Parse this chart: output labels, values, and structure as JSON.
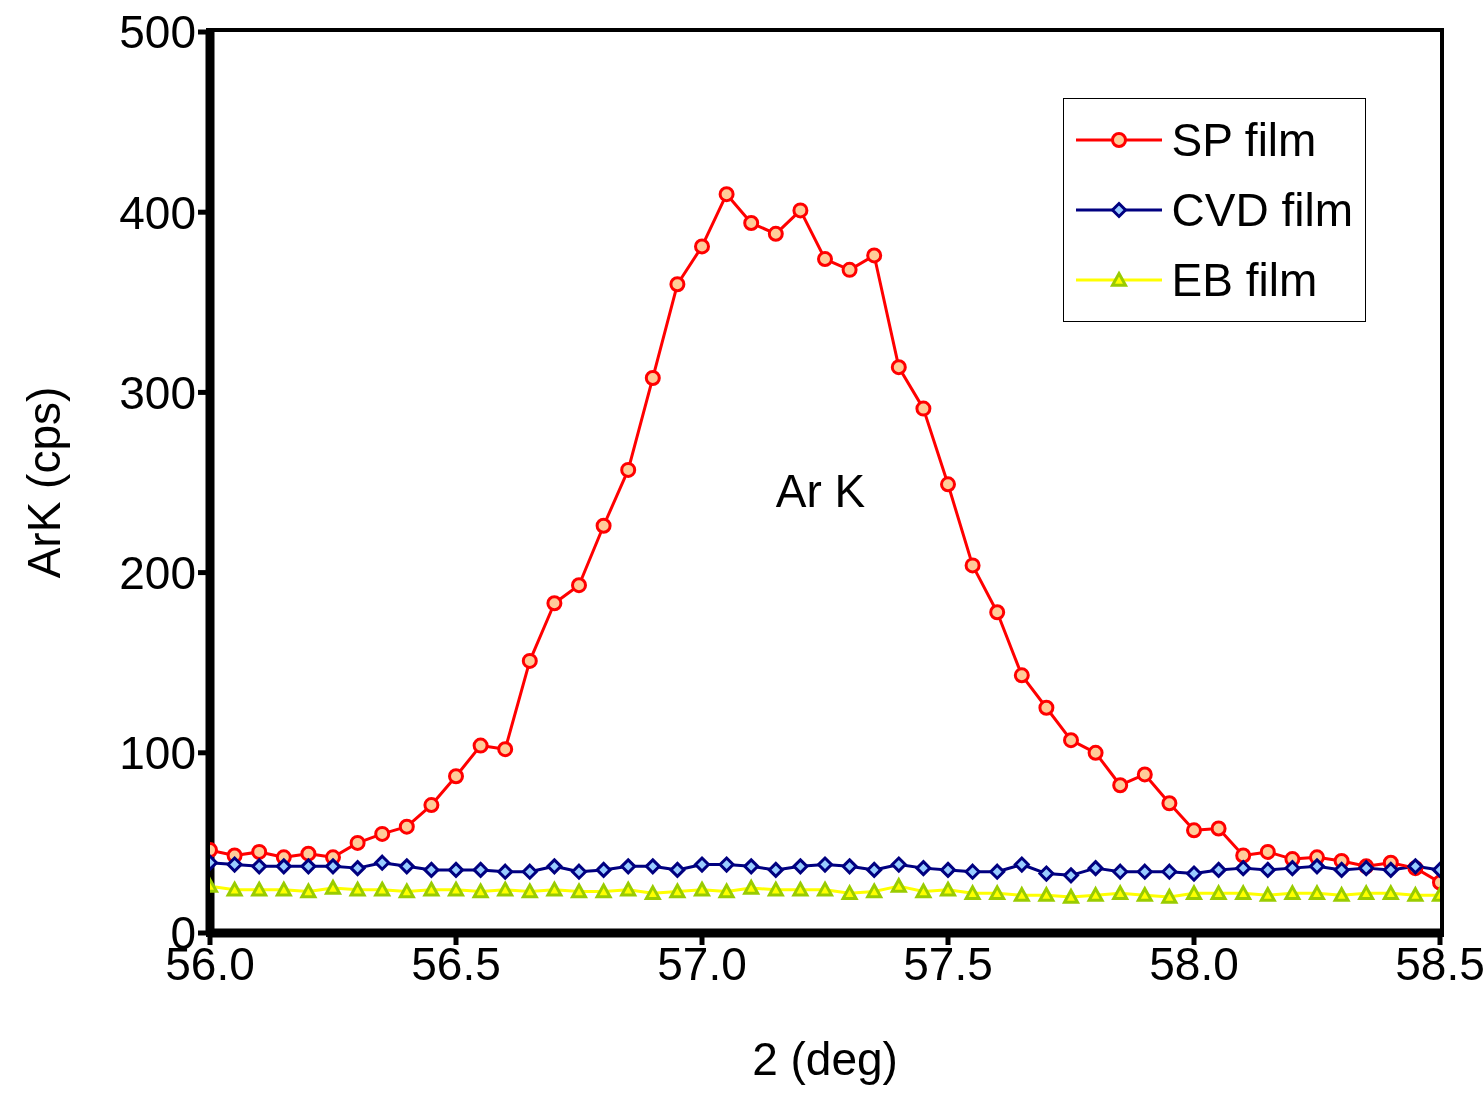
{
  "chart_data": {
    "type": "line",
    "xlabel": "2    (deg)",
    "ylabel": "ArK    (cps)",
    "annotations": [
      "Ar K"
    ],
    "x": [
      56.0,
      56.05,
      56.1,
      56.15,
      56.2,
      56.25,
      56.3,
      56.35,
      56.4,
      56.45,
      56.5,
      56.55,
      56.6,
      56.65,
      56.7,
      56.75,
      56.8,
      56.85,
      56.9,
      56.95,
      57.0,
      57.05,
      57.1,
      57.15,
      57.2,
      57.25,
      57.3,
      57.35,
      57.4,
      57.45,
      57.5,
      57.55,
      57.6,
      57.65,
      57.7,
      57.75,
      57.8,
      57.85,
      57.9,
      57.95,
      58.0,
      58.05,
      58.1,
      58.15,
      58.2,
      58.25,
      58.3,
      58.35,
      58.4,
      58.45,
      58.5
    ],
    "series": [
      {
        "name": "SP film",
        "color": "#ff0000",
        "marker": "circle",
        "values": [
          46,
          43,
          45,
          42,
          44,
          42,
          50,
          55,
          59,
          71,
          87,
          104,
          102,
          151,
          183,
          193,
          226,
          257,
          308,
          360,
          381,
          410,
          394,
          388,
          401,
          374,
          368,
          376,
          314,
          291,
          249,
          204,
          178,
          143,
          125,
          107,
          100,
          82,
          88,
          72,
          57,
          58,
          43,
          45,
          41,
          42,
          40,
          37,
          39,
          36,
          28
        ]
      },
      {
        "name": "CVD film",
        "color": "#000080",
        "marker": "diamond",
        "values": [
          39,
          38,
          37,
          37,
          37,
          37,
          36,
          39,
          37,
          35,
          35,
          35,
          34,
          34,
          37,
          34,
          35,
          37,
          37,
          35,
          38,
          38,
          37,
          35,
          37,
          38,
          37,
          35,
          38,
          36,
          35,
          34,
          34,
          38,
          33,
          32,
          36,
          34,
          34,
          34,
          33,
          35,
          36,
          35,
          36,
          37,
          35,
          36,
          35,
          37,
          35
        ]
      },
      {
        "name": "EB film",
        "color": "#ffff00",
        "marker": "triangle",
        "values": [
          26,
          24,
          24,
          24,
          23,
          25,
          24,
          24,
          23,
          24,
          24,
          23,
          24,
          23,
          24,
          23,
          23,
          24,
          22,
          23,
          24,
          23,
          25,
          24,
          24,
          24,
          22,
          23,
          26,
          23,
          24,
          22,
          22,
          21,
          21,
          20,
          21,
          22,
          21,
          20,
          22,
          22,
          22,
          21,
          22,
          22,
          21,
          22,
          22,
          21,
          21
        ]
      }
    ],
    "xlim": [
      56.0,
      58.5
    ],
    "xticks": [
      {
        "value": 56,
        "label": "56.0"
      },
      {
        "value": 56.5,
        "label": "56.5"
      },
      {
        "value": 57,
        "label": "57.0"
      },
      {
        "value": 57.5,
        "label": "57.5"
      },
      {
        "value": 58,
        "label": "58.0"
      },
      {
        "value": 58.5,
        "label": "58.5"
      }
    ],
    "ylim": [
      0,
      500
    ],
    "yticks": [
      0,
      100,
      200,
      300,
      400,
      500
    ],
    "legend": "top right"
  }
}
